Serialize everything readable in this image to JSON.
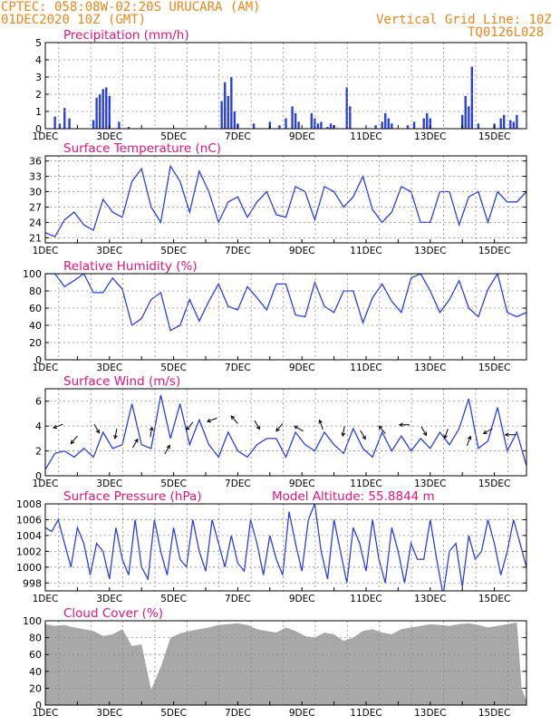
{
  "header": {
    "line1": "CPTEC:   058:08W-02:20S   URUCARA (AM)",
    "line2": "01DEC2020 10Z (GMT)",
    "grid_note": "Vertical Grid Line: 10Z",
    "run_id": "TQ0126L028"
  },
  "colors": {
    "header": "#e8861c",
    "title": "#e0147a",
    "series": "#2a3fe0",
    "cloud": "#a8a8a8",
    "grid": "#8a8a8a"
  },
  "x_axis": {
    "start_day": 1,
    "end_day": 16,
    "ticks": [
      "1DEC",
      "3DEC",
      "5DEC",
      "7DEC",
      "9DEC",
      "11DEC",
      "13DEC",
      "15DEC"
    ],
    "tick_days": [
      1,
      3,
      5,
      7,
      9,
      11,
      13,
      15
    ]
  },
  "chart_data": [
    {
      "id": "precip",
      "type": "bar",
      "title": "Precipitation (mm/h)",
      "ylim": [
        0,
        5
      ],
      "yticks": [
        0,
        1,
        2,
        3,
        4,
        5
      ],
      "x": [
        1.3,
        1.45,
        1.6,
        1.75,
        2.5,
        2.6,
        2.7,
        2.8,
        2.9,
        3.0,
        3.3,
        3.6,
        6.5,
        6.6,
        6.7,
        6.8,
        6.9,
        7.0,
        7.5,
        8.0,
        8.3,
        8.5,
        8.7,
        8.8,
        8.9,
        9.3,
        9.4,
        9.5,
        9.6,
        9.8,
        9.9,
        10.0,
        10.4,
        10.5,
        11.3,
        11.5,
        11.6,
        11.7,
        11.8,
        12.3,
        12.5,
        12.8,
        12.9,
        13.0,
        14.0,
        14.1,
        14.2,
        14.3,
        14.5,
        15.0,
        15.2,
        15.3,
        15.5,
        15.6,
        15.7
      ],
      "values": [
        0.7,
        0.3,
        1.2,
        0.6,
        0.5,
        1.8,
        2.0,
        2.3,
        2.4,
        1.9,
        0.4,
        0.1,
        1.6,
        2.7,
        1.9,
        3.0,
        1.0,
        0.3,
        0.3,
        0.4,
        0.2,
        0.6,
        1.3,
        0.9,
        0.4,
        0.9,
        0.6,
        0.3,
        0.4,
        0.1,
        0.3,
        0.2,
        2.4,
        1.3,
        0.2,
        0.4,
        0.9,
        0.6,
        0.3,
        0.2,
        0.4,
        0.6,
        0.9,
        0.6,
        0.8,
        1.9,
        1.3,
        3.6,
        0.3,
        0.3,
        0.6,
        0.8,
        0.5,
        0.4,
        0.8
      ]
    },
    {
      "id": "temp",
      "type": "line",
      "title": "Surface Temperature (nC)",
      "ylim": [
        20,
        37
      ],
      "yticks": [
        21,
        24,
        27,
        30,
        33,
        36
      ],
      "x": [
        1.0,
        1.3,
        1.6,
        1.9,
        2.2,
        2.5,
        2.8,
        3.1,
        3.4,
        3.7,
        4.0,
        4.3,
        4.6,
        4.9,
        5.2,
        5.5,
        5.8,
        6.1,
        6.4,
        6.7,
        7.0,
        7.3,
        7.6,
        7.9,
        8.2,
        8.5,
        8.8,
        9.1,
        9.4,
        9.7,
        10.0,
        10.3,
        10.6,
        10.9,
        11.2,
        11.5,
        11.8,
        12.1,
        12.4,
        12.7,
        13.0,
        13.3,
        13.6,
        13.9,
        14.2,
        14.5,
        14.8,
        15.1,
        15.4,
        15.7,
        16.0
      ],
      "values": [
        22,
        21.2,
        24.5,
        26,
        23.5,
        22.5,
        28.5,
        26,
        25,
        32,
        34.5,
        27,
        24,
        35,
        32,
        26,
        34,
        30,
        24,
        28,
        29,
        25,
        28,
        30,
        25.5,
        25,
        31,
        30,
        24.5,
        31,
        30,
        27,
        29,
        33,
        26.5,
        24,
        26,
        31,
        30,
        24,
        24,
        30,
        30,
        23.5,
        29,
        30,
        24,
        30,
        28,
        28,
        30
      ]
    },
    {
      "id": "rh",
      "type": "line",
      "title": "Relative Humidity (%)",
      "ylim": [
        0,
        100
      ],
      "yticks": [
        0,
        20,
        40,
        60,
        80,
        100
      ],
      "x": [
        1.0,
        1.3,
        1.6,
        1.9,
        2.2,
        2.5,
        2.8,
        3.1,
        3.4,
        3.7,
        4.0,
        4.3,
        4.6,
        4.9,
        5.2,
        5.5,
        5.8,
        6.1,
        6.4,
        6.7,
        7.0,
        7.3,
        7.6,
        7.9,
        8.2,
        8.5,
        8.8,
        9.1,
        9.4,
        9.7,
        10.0,
        10.3,
        10.6,
        10.9,
        11.2,
        11.5,
        11.8,
        12.1,
        12.4,
        12.7,
        13.0,
        13.3,
        13.6,
        13.9,
        14.2,
        14.5,
        14.8,
        15.1,
        15.4,
        15.7,
        16.0
      ],
      "values": [
        100,
        100,
        85,
        92,
        100,
        78,
        78,
        95,
        82,
        40,
        48,
        70,
        78,
        34,
        40,
        70,
        45,
        68,
        88,
        62,
        58,
        85,
        72,
        58,
        88,
        88,
        52,
        50,
        90,
        62,
        55,
        80,
        80,
        43,
        72,
        88,
        68,
        55,
        95,
        100,
        80,
        55,
        70,
        92,
        60,
        50,
        82,
        100,
        55,
        50,
        55
      ]
    },
    {
      "id": "wind",
      "type": "line",
      "title": "Surface Wind (m/s)",
      "ylim": [
        0,
        7
      ],
      "yticks": [
        0,
        2,
        4,
        6
      ],
      "x": [
        1.0,
        1.3,
        1.6,
        1.9,
        2.2,
        2.5,
        2.8,
        3.1,
        3.4,
        3.7,
        4.0,
        4.3,
        4.6,
        4.9,
        5.2,
        5.5,
        5.8,
        6.1,
        6.4,
        6.7,
        7.0,
        7.3,
        7.6,
        7.9,
        8.2,
        8.5,
        8.8,
        9.1,
        9.4,
        9.7,
        10.0,
        10.3,
        10.6,
        10.9,
        11.2,
        11.5,
        11.8,
        12.1,
        12.4,
        12.7,
        13.0,
        13.3,
        13.6,
        13.9,
        14.2,
        14.5,
        14.8,
        15.1,
        15.4,
        15.7,
        16.0
      ],
      "values": [
        0.5,
        1.8,
        2,
        1.5,
        2.2,
        1.5,
        3.5,
        2.2,
        2.5,
        5.8,
        2.5,
        2.2,
        6.5,
        3,
        5.8,
        2.5,
        4.5,
        2.5,
        1.5,
        3.5,
        2,
        1.5,
        2.5,
        3,
        3,
        1.5,
        3.5,
        2.5,
        2,
        3.5,
        2.5,
        1.8,
        3.8,
        2.2,
        1.5,
        3.5,
        2,
        3.2,
        2,
        3,
        2.2,
        3.5,
        2.5,
        3.8,
        6.2,
        2.2,
        2.8,
        5.5,
        2,
        3.5,
        0.8
      ],
      "arrows": [
        [
          1.4,
          4.0,
          200
        ],
        [
          1.9,
          2.9,
          230
        ],
        [
          2.6,
          3.8,
          300
        ],
        [
          3.2,
          3.4,
          260
        ],
        [
          3.8,
          2.6,
          60
        ],
        [
          4.3,
          3.5,
          80
        ],
        [
          4.8,
          2.1,
          60
        ],
        [
          5.5,
          4.0,
          230
        ],
        [
          6.2,
          4.5,
          200
        ],
        [
          6.9,
          4.5,
          130
        ],
        [
          7.6,
          4.1,
          300
        ],
        [
          8.3,
          3.9,
          230
        ],
        [
          8.9,
          3.8,
          150
        ],
        [
          9.6,
          4.1,
          110
        ],
        [
          10.3,
          3.6,
          260
        ],
        [
          10.9,
          3.3,
          300
        ],
        [
          11.5,
          3.7,
          130
        ],
        [
          12.2,
          4.1,
          180
        ],
        [
          12.8,
          3.6,
          300
        ],
        [
          13.5,
          3.4,
          250
        ],
        [
          14.2,
          2.8,
          70
        ],
        [
          14.8,
          3.6,
          210
        ],
        [
          15.5,
          3.3,
          180
        ]
      ]
    },
    {
      "id": "pres",
      "type": "line",
      "title": "Surface Pressure (hPa)",
      "extra_label": "Model Altitude: 55.8844 m",
      "ylim": [
        997,
        1008
      ],
      "yticks": [
        998,
        1000,
        1002,
        1004,
        1006,
        1008
      ],
      "x": [
        1.0,
        1.2,
        1.4,
        1.6,
        1.8,
        2.0,
        2.2,
        2.4,
        2.6,
        2.8,
        3.0,
        3.2,
        3.4,
        3.6,
        3.8,
        4.0,
        4.2,
        4.4,
        4.6,
        4.8,
        5.0,
        5.2,
        5.4,
        5.6,
        5.8,
        6.0,
        6.2,
        6.4,
        6.6,
        6.8,
        7.0,
        7.2,
        7.4,
        7.6,
        7.8,
        8.0,
        8.2,
        8.4,
        8.6,
        8.8,
        9.0,
        9.2,
        9.4,
        9.6,
        9.8,
        10.0,
        10.2,
        10.4,
        10.6,
        10.8,
        11.0,
        11.2,
        11.4,
        11.6,
        11.8,
        12.0,
        12.2,
        12.4,
        12.6,
        12.8,
        13.0,
        13.2,
        13.4,
        13.6,
        13.8,
        14.0,
        14.2,
        14.4,
        14.6,
        14.8,
        15.0,
        15.2,
        15.4,
        15.6,
        15.8,
        16.0
      ],
      "values": [
        1005,
        1004.5,
        1006,
        1003,
        1000,
        1005,
        1003,
        999,
        1003,
        1002,
        998.5,
        1005,
        1001,
        999,
        1006,
        1000,
        998.5,
        1006,
        1002,
        999,
        1005,
        1001,
        1000,
        1006,
        1002,
        999.5,
        1006,
        1003,
        1000,
        1004,
        1000.5,
        999.5,
        1006,
        1003,
        999,
        1004,
        1001,
        999,
        1007,
        1003,
        999.5,
        1006,
        1008,
        1002,
        998.5,
        1006,
        1002,
        998,
        1005,
        1003,
        999.5,
        1006,
        1001,
        998,
        1005,
        1002,
        998,
        1003,
        1001,
        1001,
        1006,
        1001,
        996.5,
        1002,
        1003,
        997.5,
        1004,
        1001,
        1002,
        1006,
        1003,
        999,
        1002,
        1006,
        1003,
        1000
      ]
    },
    {
      "id": "cloud",
      "type": "area",
      "title": "Cloud Cover (%)",
      "ylim": [
        0,
        100
      ],
      "yticks": [
        0,
        20,
        40,
        60,
        80,
        100
      ],
      "x": [
        1.0,
        1.3,
        1.6,
        1.9,
        2.2,
        2.5,
        2.8,
        3.1,
        3.4,
        3.7,
        4.0,
        4.3,
        4.6,
        4.9,
        5.2,
        5.5,
        5.8,
        6.1,
        6.4,
        6.7,
        7.0,
        7.3,
        7.6,
        7.9,
        8.2,
        8.5,
        8.8,
        9.1,
        9.4,
        9.7,
        10.0,
        10.3,
        10.6,
        10.9,
        11.2,
        11.5,
        11.8,
        12.1,
        12.4,
        12.7,
        13.0,
        13.3,
        13.6,
        13.9,
        14.2,
        14.5,
        14.8,
        15.1,
        15.4,
        15.7,
        15.85,
        16.0
      ],
      "values": [
        96,
        94,
        95,
        92,
        90,
        88,
        82,
        84,
        90,
        70,
        72,
        18,
        45,
        80,
        85,
        88,
        90,
        92,
        95,
        96,
        97,
        95,
        90,
        88,
        86,
        92,
        88,
        82,
        80,
        86,
        84,
        76,
        80,
        88,
        90,
        86,
        84,
        90,
        92,
        94,
        96,
        95,
        94,
        96,
        97,
        95,
        92,
        94,
        96,
        98,
        20,
        5
      ]
    }
  ]
}
